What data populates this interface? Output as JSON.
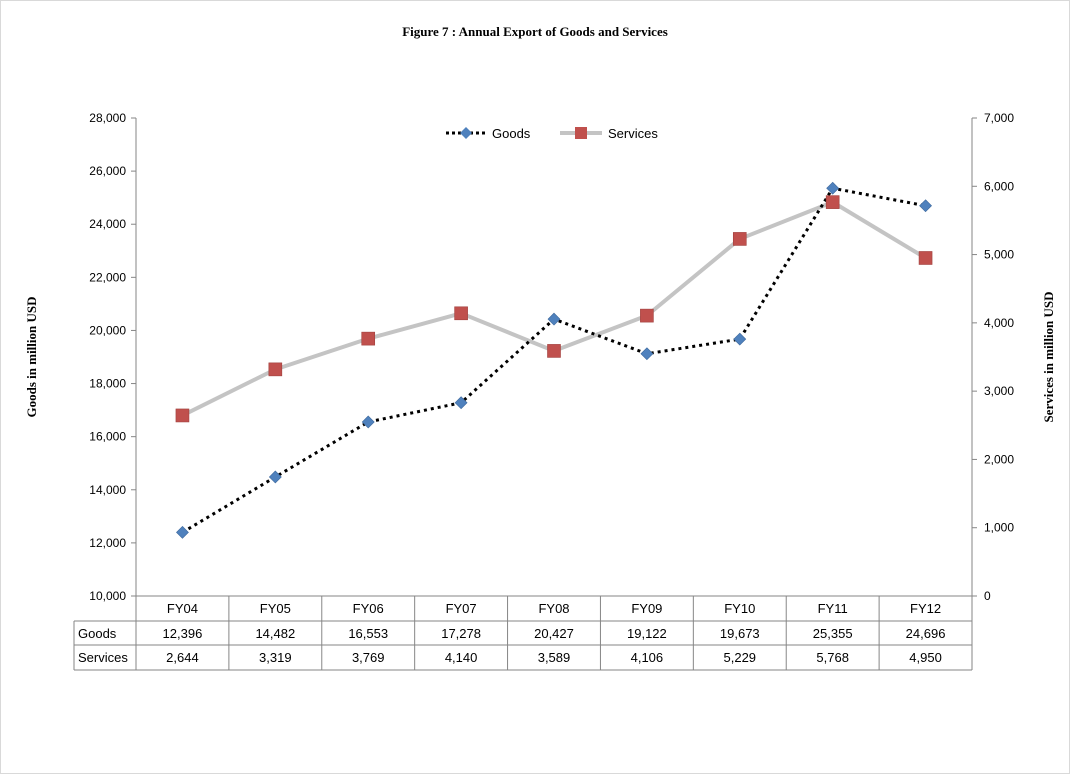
{
  "chart_data": {
    "type": "line",
    "title": "Figure 7 : Annual Export of Goods and Services",
    "categories": [
      "FY04",
      "FY05",
      "FY06",
      "FY07",
      "FY08",
      "FY09",
      "FY10",
      "FY11",
      "FY12"
    ],
    "series": [
      {
        "name": "Goods",
        "axis": "left",
        "values": [
          12396,
          14482,
          16553,
          17278,
          20427,
          19122,
          19673,
          25355,
          24696
        ],
        "labels": [
          "12,396",
          "14,482",
          "16,553",
          "17,278",
          "20,427",
          "19,122",
          "19,673",
          "25,355",
          "24,696"
        ],
        "color": "#4f81bd",
        "line_color": "#000000",
        "line_style": "dotted",
        "marker": "diamond"
      },
      {
        "name": "Services",
        "axis": "right",
        "values": [
          2644,
          3319,
          3769,
          4140,
          3589,
          4106,
          5229,
          5768,
          4950
        ],
        "labels": [
          "2,644",
          "3,319",
          "3,769",
          "4,140",
          "3,589",
          "4,106",
          "5,229",
          "5,768",
          "4,950"
        ],
        "color": "#c0504d",
        "line_color": "#bfbfbf",
        "line_style": "solid",
        "marker": "square"
      }
    ],
    "left_axis": {
      "label": "Goods in million USD",
      "range": [
        10000,
        28000
      ],
      "ticks": [
        10000,
        12000,
        14000,
        16000,
        18000,
        20000,
        22000,
        24000,
        26000,
        28000
      ],
      "tick_labels": [
        "10,000",
        "12,000",
        "14,000",
        "16,000",
        "18,000",
        "20,000",
        "22,000",
        "24,000",
        "26,000",
        "28,000"
      ]
    },
    "right_axis": {
      "label": "Services in million  USD",
      "range": [
        0,
        7000
      ],
      "ticks": [
        0,
        1000,
        2000,
        3000,
        4000,
        5000,
        6000,
        7000
      ],
      "tick_labels": [
        "0",
        "1,000",
        "2,000",
        "3,000",
        "4,000",
        "5,000",
        "6,000",
        "7,000"
      ]
    },
    "grid": false,
    "legend_position": "top-center",
    "data_table": true
  }
}
